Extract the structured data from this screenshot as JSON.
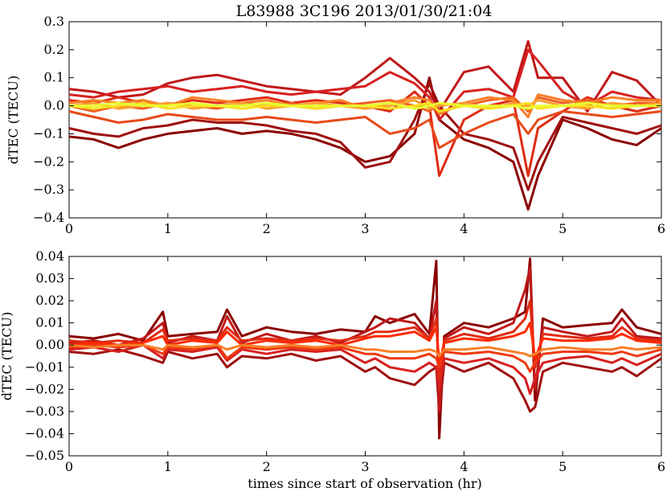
{
  "chart_data": [
    {
      "type": "line",
      "title": "L83988 3C196 2013/01/30/21:04",
      "xlabel": "",
      "ylabel": "dTEC (TECU)",
      "xlim": [
        0,
        6
      ],
      "ylim": [
        -0.4,
        0.3
      ],
      "xticks": [
        "0",
        "1",
        "2",
        "3",
        "4",
        "5",
        "6"
      ],
      "yticks": [
        "0.3",
        "0.2",
        "0.1",
        "0.0",
        "−0.1",
        "−0.2",
        "−0.3",
        "−0.4"
      ],
      "grid": false,
      "x": [
        0,
        0.25,
        0.5,
        0.75,
        1.0,
        1.25,
        1.5,
        1.75,
        2.0,
        2.25,
        2.5,
        2.75,
        3.0,
        3.25,
        3.5,
        3.65,
        3.75,
        4.0,
        4.25,
        4.5,
        4.65,
        4.75,
        5.0,
        5.25,
        5.5,
        5.75,
        6.0
      ],
      "series": [
        {
          "color": "#8b0000",
          "values": [
            -0.11,
            -0.12,
            -0.15,
            -0.12,
            -0.1,
            -0.09,
            -0.08,
            -0.1,
            -0.09,
            -0.1,
            -0.12,
            -0.15,
            -0.2,
            -0.18,
            -0.1,
            0.1,
            -0.05,
            -0.12,
            -0.15,
            -0.2,
            -0.37,
            -0.25,
            -0.05,
            -0.08,
            -0.12,
            -0.14,
            -0.08
          ]
        },
        {
          "color": "#a01010",
          "values": [
            -0.08,
            -0.1,
            -0.11,
            -0.08,
            -0.07,
            -0.05,
            -0.06,
            -0.06,
            -0.07,
            -0.09,
            -0.1,
            -0.13,
            -0.22,
            -0.2,
            -0.05,
            0.08,
            0.0,
            -0.1,
            -0.12,
            -0.15,
            -0.3,
            -0.2,
            -0.04,
            -0.06,
            -0.08,
            -0.1,
            -0.07
          ]
        },
        {
          "color": "#c01818",
          "values": [
            0.06,
            0.05,
            0.03,
            0.04,
            0.08,
            0.1,
            0.11,
            0.09,
            0.07,
            0.06,
            0.05,
            0.04,
            0.1,
            0.17,
            0.1,
            0.05,
            -0.02,
            0.12,
            0.14,
            0.05,
            0.23,
            0.1,
            0.1,
            -0.02,
            0.12,
            0.09,
            0.0
          ]
        },
        {
          "color": "#d82020",
          "values": [
            0.04,
            0.03,
            0.05,
            0.06,
            0.07,
            0.05,
            0.06,
            0.07,
            0.05,
            0.04,
            0.05,
            0.06,
            0.07,
            0.12,
            0.08,
            0.03,
            -0.05,
            0.05,
            0.06,
            0.03,
            0.2,
            0.16,
            0.05,
            0.0,
            0.05,
            0.03,
            0.02
          ]
        },
        {
          "color": "#e02c14",
          "values": [
            0.02,
            0.01,
            0.03,
            0.01,
            0.0,
            0.02,
            0.01,
            0.02,
            0.03,
            0.01,
            0.02,
            0.01,
            0.0,
            -0.02,
            0.05,
            0.0,
            -0.25,
            -0.05,
            0.0,
            0.02,
            -0.25,
            -0.08,
            -0.02,
            0.03,
            0.0,
            -0.02,
            0.0
          ]
        },
        {
          "color": "#e84a1a",
          "values": [
            -0.02,
            -0.04,
            -0.06,
            -0.05,
            -0.03,
            -0.04,
            -0.05,
            -0.05,
            -0.04,
            -0.05,
            -0.06,
            -0.05,
            -0.04,
            -0.1,
            -0.08,
            -0.05,
            -0.15,
            -0.1,
            -0.06,
            -0.03,
            -0.1,
            -0.05,
            -0.02,
            -0.03,
            -0.04,
            -0.03,
            -0.02
          ]
        },
        {
          "color": "#f06020",
          "values": [
            0.0,
            -0.02,
            0.0,
            -0.01,
            0.01,
            0.0,
            -0.01,
            0.01,
            0.0,
            0.01,
            -0.01,
            0.0,
            0.01,
            0.02,
            0.0,
            -0.02,
            0.01,
            0.0,
            0.02,
            0.03,
            -0.02,
            0.03,
            0.01,
            0.02,
            0.0,
            0.01,
            0.01
          ]
        },
        {
          "color": "#f88028",
          "values": [
            0.01,
            0.02,
            0.01,
            0.02,
            0.0,
            0.03,
            0.02,
            0.01,
            0.02,
            0.0,
            0.01,
            0.02,
            -0.01,
            0.01,
            0.03,
            0.02,
            -0.03,
            0.01,
            0.03,
            0.02,
            -0.04,
            0.04,
            0.02,
            0.01,
            0.03,
            0.02,
            0.02
          ]
        },
        {
          "color": "#fca030",
          "values": [
            0.0,
            0.01,
            -0.01,
            0.0,
            0.01,
            -0.01,
            0.0,
            0.01,
            -0.01,
            0.0,
            0.01,
            0.0,
            -0.01,
            0.0,
            0.02,
            -0.01,
            0.0,
            0.01,
            -0.01,
            0.01,
            0.0,
            0.02,
            0.0,
            -0.01,
            0.01,
            0.0,
            0.01
          ]
        },
        {
          "color": "#f8e020",
          "values": [
            0.0,
            -0.01,
            0.0,
            0.01,
            -0.01,
            0.0,
            0.0,
            -0.01,
            0.0,
            0.0,
            -0.01,
            0.0,
            0.0,
            -0.01,
            0.0,
            0.01,
            -0.02,
            0.0,
            -0.01,
            0.0,
            0.01,
            -0.01,
            0.0,
            0.0,
            -0.01,
            0.0,
            0.0
          ]
        },
        {
          "color": "#e8ff30",
          "values": [
            0.0,
            0.0,
            0.01,
            0.0,
            0.0,
            0.01,
            0.0,
            0.0,
            0.01,
            0.0,
            0.0,
            0.0,
            0.0,
            0.01,
            -0.01,
            0.0,
            0.01,
            0.0,
            0.0,
            0.0,
            -0.01,
            0.0,
            0.0,
            0.01,
            0.0,
            0.0,
            0.0
          ]
        }
      ]
    },
    {
      "type": "line",
      "title": "",
      "xlabel": "times since start of observation (hr)",
      "ylabel": "dTEC (TECU)",
      "xlim": [
        0,
        6
      ],
      "ylim": [
        -0.05,
        0.04
      ],
      "xticks": [
        "0",
        "1",
        "2",
        "3",
        "4",
        "5",
        "6"
      ],
      "yticks": [
        "0.04",
        "0.03",
        "0.02",
        "0.01",
        "0.00",
        "−0.01",
        "−0.02",
        "−0.03",
        "−0.04",
        "−0.05"
      ],
      "grid": false,
      "x": [
        0,
        0.25,
        0.5,
        0.75,
        0.95,
        1.0,
        1.25,
        1.5,
        1.6,
        1.75,
        2.0,
        2.25,
        2.5,
        2.75,
        3.0,
        3.1,
        3.25,
        3.5,
        3.65,
        3.72,
        3.75,
        3.8,
        4.0,
        4.25,
        4.5,
        4.62,
        4.67,
        4.72,
        4.8,
        5.0,
        5.25,
        5.5,
        5.6,
        5.75,
        6.0
      ],
      "series": [
        {
          "color": "#8b0000",
          "values": [
            0.004,
            0.003,
            0.005,
            0.002,
            0.015,
            0.004,
            0.005,
            0.006,
            0.016,
            0.004,
            0.008,
            0.006,
            0.005,
            0.007,
            0.006,
            0.013,
            0.01,
            0.014,
            0.005,
            0.038,
            -0.042,
            0.004,
            0.01,
            0.008,
            0.012,
            0.015,
            0.039,
            -0.025,
            0.012,
            0.008,
            0.009,
            0.01,
            0.016,
            0.008,
            0.005
          ]
        },
        {
          "color": "#a01010",
          "values": [
            -0.003,
            -0.004,
            -0.002,
            -0.005,
            -0.008,
            -0.003,
            -0.006,
            -0.004,
            -0.01,
            -0.005,
            -0.006,
            -0.004,
            -0.007,
            -0.005,
            -0.012,
            -0.01,
            -0.015,
            -0.018,
            -0.012,
            -0.01,
            -0.03,
            -0.008,
            -0.012,
            -0.008,
            -0.015,
            -0.025,
            -0.03,
            -0.028,
            -0.012,
            -0.008,
            -0.01,
            -0.012,
            -0.01,
            -0.014,
            -0.006
          ]
        },
        {
          "color": "#c01818",
          "values": [
            0.001,
            0.002,
            0.0,
            0.003,
            0.01,
            0.001,
            0.004,
            0.002,
            0.013,
            0.001,
            0.005,
            0.002,
            0.004,
            0.001,
            0.006,
            0.008,
            0.012,
            0.01,
            0.003,
            0.02,
            -0.03,
            0.003,
            0.008,
            0.005,
            0.01,
            0.025,
            0.035,
            -0.02,
            0.008,
            0.006,
            0.004,
            0.006,
            0.012,
            0.004,
            0.003
          ]
        },
        {
          "color": "#d82020",
          "values": [
            -0.002,
            -0.001,
            -0.003,
            0.0,
            -0.006,
            -0.002,
            -0.003,
            -0.001,
            -0.007,
            -0.002,
            -0.004,
            -0.002,
            -0.003,
            -0.002,
            -0.008,
            -0.006,
            -0.01,
            -0.012,
            -0.008,
            -0.01,
            -0.02,
            -0.006,
            -0.008,
            -0.006,
            -0.01,
            -0.015,
            -0.022,
            -0.015,
            -0.008,
            -0.006,
            -0.005,
            -0.008,
            -0.006,
            -0.009,
            -0.004
          ]
        },
        {
          "color": "#e02c14",
          "values": [
            0.002,
            0.001,
            0.002,
            0.001,
            0.007,
            0.002,
            0.003,
            0.002,
            0.008,
            0.002,
            0.003,
            0.002,
            0.003,
            0.002,
            0.004,
            0.006,
            0.006,
            0.008,
            0.003,
            0.012,
            -0.015,
            0.002,
            0.005,
            0.003,
            0.006,
            0.012,
            0.02,
            -0.01,
            0.005,
            0.004,
            0.003,
            0.004,
            0.008,
            0.003,
            0.002
          ]
        },
        {
          "color": "#ee3a10",
          "values": [
            -0.001,
            0.0,
            -0.001,
            0.0,
            -0.004,
            -0.001,
            -0.002,
            0.0,
            -0.006,
            -0.001,
            -0.002,
            -0.001,
            -0.002,
            -0.001,
            -0.004,
            -0.004,
            -0.006,
            -0.006,
            -0.004,
            -0.006,
            -0.01,
            -0.003,
            -0.004,
            -0.003,
            -0.005,
            -0.008,
            -0.012,
            -0.008,
            -0.004,
            -0.003,
            -0.003,
            -0.004,
            -0.003,
            -0.005,
            -0.002
          ]
        },
        {
          "color": "#ff2a00",
          "values": [
            0.0,
            0.001,
            0.0,
            0.001,
            0.004,
            0.0,
            0.002,
            0.001,
            0.006,
            0.0,
            0.002,
            0.001,
            0.002,
            0.0,
            0.003,
            0.004,
            0.004,
            0.006,
            0.002,
            0.008,
            -0.008,
            0.001,
            0.003,
            0.002,
            0.004,
            0.006,
            0.01,
            -0.006,
            0.003,
            0.002,
            0.002,
            0.003,
            0.005,
            0.002,
            0.001
          ]
        },
        {
          "color": "#f88028",
          "values": [
            0.0,
            -0.001,
            0.0,
            0.0,
            -0.002,
            0.0,
            -0.001,
            0.0,
            -0.002,
            0.0,
            -0.001,
            0.0,
            -0.001,
            0.0,
            -0.002,
            -0.002,
            -0.003,
            -0.003,
            -0.002,
            -0.003,
            -0.005,
            -0.002,
            -0.002,
            -0.001,
            -0.003,
            -0.004,
            -0.005,
            -0.004,
            -0.002,
            -0.001,
            -0.002,
            -0.002,
            -0.001,
            -0.002,
            -0.001
          ]
        }
      ]
    }
  ]
}
